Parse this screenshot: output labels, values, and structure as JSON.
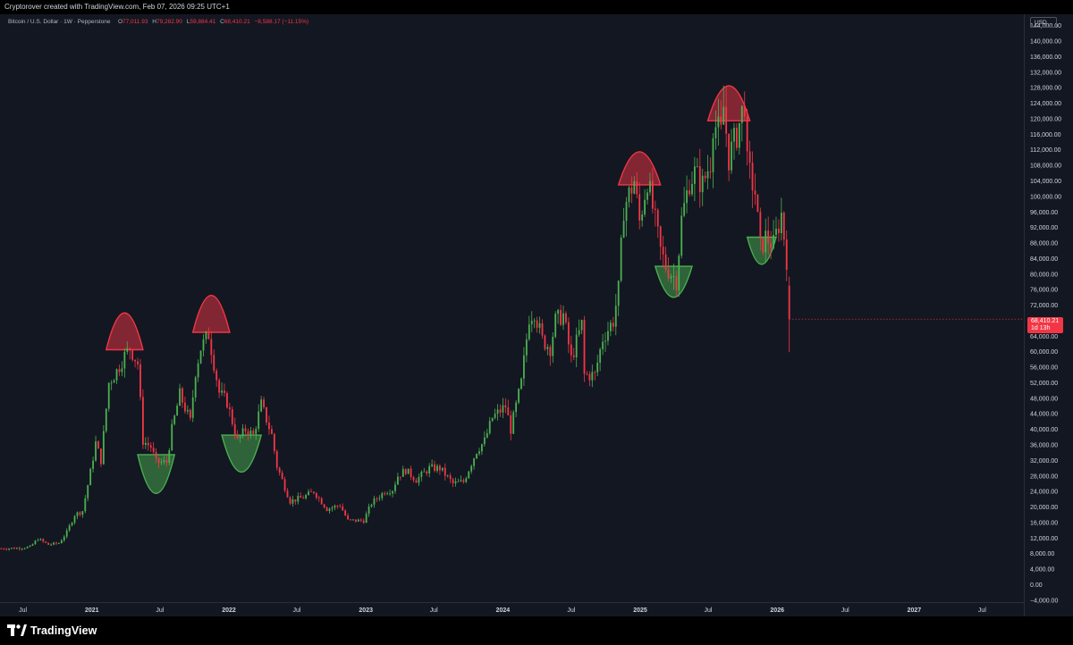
{
  "header": {
    "attribution": "Cryptorover created with TradingView.com, Feb 07, 2026 09:25 UTC+1"
  },
  "legend": {
    "symbol": "Bitcoin / U.S. Dollar · 1W · Pepperstone",
    "open_label": "O",
    "open": "77,011.93",
    "high_label": "H",
    "high": "79,282.90",
    "low_label": "L",
    "low": "59,884.41",
    "close_label": "C",
    "close": "68,410.21",
    "change": "−8,588.17 (−11.15%)"
  },
  "price_scale": {
    "currency": "USD",
    "last_price": "68,410.21",
    "countdown": "1d 13h"
  },
  "footer": {
    "brand": "TradingView"
  },
  "colors": {
    "background": "#131722",
    "up": "#4caf50",
    "down": "#f23645",
    "text": "#d1d4dc",
    "bar": "#000000"
  },
  "chart_data": {
    "type": "candlestick",
    "interval": "1W",
    "price_axis": {
      "ticks": [
        -4000,
        0,
        4000,
        8000,
        12000,
        16000,
        20000,
        24000,
        28000,
        32000,
        36000,
        40000,
        44000,
        48000,
        52000,
        56000,
        60000,
        64000,
        68000,
        72000,
        76000,
        80000,
        84000,
        88000,
        92000,
        96000,
        100000,
        104000,
        108000,
        112000,
        116000,
        120000,
        124000,
        128000,
        132000,
        136000,
        140000,
        144000
      ],
      "tick_labels": [
        "−4,000.00",
        "0.00",
        "4,000.00",
        "8,000.00",
        "12,000.00",
        "16,000.00",
        "20,000.00",
        "24,000.00",
        "28,000.00",
        "32,000.00",
        "36,000.00",
        "40,000.00",
        "44,000.00",
        "48,000.00",
        "52,000.00",
        "56,000.00",
        "60,000.00",
        "64,000.00",
        "68,000.00",
        "72,000.00",
        "76,000.00",
        "80,000.00",
        "84,000.00",
        "88,000.00",
        "92,000.00",
        "96,000.00",
        "100,000.00",
        "104,000.00",
        "108,000.00",
        "112,000.00",
        "116,000.00",
        "120,000.00",
        "124,000.00",
        "128,000.00",
        "132,000.00",
        "136,000.00",
        "140,000.00",
        "144,000.00"
      ],
      "range": [
        -4500,
        146000
      ]
    },
    "time_axis": {
      "range": [
        "2020-05-01",
        "2027-10-20"
      ],
      "ticks": [
        {
          "date": "2020-07-01",
          "label": "Jul",
          "major": false
        },
        {
          "date": "2021-01-01",
          "label": "2021",
          "major": true
        },
        {
          "date": "2021-07-01",
          "label": "Jul",
          "major": false
        },
        {
          "date": "2022-01-01",
          "label": "2022",
          "major": true
        },
        {
          "date": "2022-07-01",
          "label": "Jul",
          "major": false
        },
        {
          "date": "2023-01-01",
          "label": "2023",
          "major": true
        },
        {
          "date": "2023-07-01",
          "label": "Jul",
          "major": false
        },
        {
          "date": "2024-01-01",
          "label": "2024",
          "major": true
        },
        {
          "date": "2024-07-01",
          "label": "Jul",
          "major": false
        },
        {
          "date": "2025-01-01",
          "label": "2025",
          "major": true
        },
        {
          "date": "2025-07-01",
          "label": "Jul",
          "major": false
        },
        {
          "date": "2026-01-01",
          "label": "2026",
          "major": true
        },
        {
          "date": "2026-07-01",
          "label": "Jul",
          "major": false
        },
        {
          "date": "2027-01-01",
          "label": "2027",
          "major": true
        },
        {
          "date": "2027-07-01",
          "label": "Jul",
          "major": false
        }
      ]
    },
    "close_path": [
      [
        "2020-05-04",
        9300
      ],
      [
        "2020-06-15",
        9400
      ],
      [
        "2020-07-20",
        9700
      ],
      [
        "2020-08-10",
        11800
      ],
      [
        "2020-09-07",
        10300
      ],
      [
        "2020-10-05",
        10700
      ],
      [
        "2020-10-26",
        13500
      ],
      [
        "2020-11-16",
        18000
      ],
      [
        "2020-12-07",
        19000
      ],
      [
        "2020-12-28",
        29000
      ],
      [
        "2021-01-11",
        36500
      ],
      [
        "2021-01-25",
        32000
      ],
      [
        "2021-02-15",
        52000
      ],
      [
        "2021-03-08",
        55000
      ],
      [
        "2021-03-29",
        59000
      ],
      [
        "2021-04-12",
        61000
      ],
      [
        "2021-05-03",
        57000
      ],
      [
        "2021-05-17",
        37000
      ],
      [
        "2021-06-07",
        35500
      ],
      [
        "2021-06-21",
        31500
      ],
      [
        "2021-07-19",
        31500
      ],
      [
        "2021-08-02",
        40000
      ],
      [
        "2021-08-23",
        49000
      ],
      [
        "2021-09-20",
        42000
      ],
      [
        "2021-10-04",
        55000
      ],
      [
        "2021-10-18",
        61000
      ],
      [
        "2021-11-08",
        64500
      ],
      [
        "2021-11-22",
        57000
      ],
      [
        "2021-12-06",
        49500
      ],
      [
        "2021-12-27",
        47000
      ],
      [
        "2022-01-10",
        42000
      ],
      [
        "2022-01-24",
        37000
      ],
      [
        "2022-02-14",
        40000
      ],
      [
        "2022-03-07",
        38500
      ],
      [
        "2022-03-28",
        46500
      ],
      [
        "2022-04-25",
        38500
      ],
      [
        "2022-05-09",
        30500
      ],
      [
        "2022-06-13",
        21500
      ],
      [
        "2022-07-18",
        22500
      ],
      [
        "2022-08-15",
        24000
      ],
      [
        "2022-09-19",
        19500
      ],
      [
        "2022-10-24",
        20500
      ],
      [
        "2022-11-14",
        16500
      ],
      [
        "2022-12-26",
        16500
      ],
      [
        "2023-01-16",
        21000
      ],
      [
        "2023-02-20",
        24000
      ],
      [
        "2023-03-13",
        24500
      ],
      [
        "2023-03-27",
        28000
      ],
      [
        "2023-04-17",
        29500
      ],
      [
        "2023-05-15",
        27000
      ],
      [
        "2023-06-19",
        30000
      ],
      [
        "2023-07-17",
        30000
      ],
      [
        "2023-08-21",
        26000
      ],
      [
        "2023-09-18",
        26500
      ],
      [
        "2023-10-23",
        34500
      ],
      [
        "2023-11-13",
        37000
      ],
      [
        "2023-12-04",
        43000
      ],
      [
        "2024-01-08",
        46000
      ],
      [
        "2024-01-22",
        40000
      ],
      [
        "2024-02-19",
        52000
      ],
      [
        "2024-03-11",
        69000
      ],
      [
        "2024-03-25",
        70500
      ],
      [
        "2024-04-15",
        63000
      ],
      [
        "2024-05-06",
        61000
      ],
      [
        "2024-05-20",
        68000
      ],
      [
        "2024-06-10",
        69500
      ],
      [
        "2024-07-01",
        58000
      ],
      [
        "2024-07-29",
        67000
      ],
      [
        "2024-08-05",
        54000
      ],
      [
        "2024-09-02",
        54000
      ],
      [
        "2024-09-23",
        63500
      ],
      [
        "2024-10-21",
        68000
      ],
      [
        "2024-11-04",
        76000
      ],
      [
        "2024-11-18",
        97000
      ],
      [
        "2024-12-16",
        104000
      ],
      [
        "2024-12-30",
        93500
      ],
      [
        "2025-01-20",
        104500
      ],
      [
        "2025-02-03",
        97000
      ],
      [
        "2025-02-24",
        86000
      ],
      [
        "2025-03-10",
        82000
      ],
      [
        "2025-04-07",
        78500
      ],
      [
        "2025-04-21",
        94000
      ],
      [
        "2025-05-12",
        104000
      ],
      [
        "2025-05-26",
        106000
      ],
      [
        "2025-06-16",
        103000
      ],
      [
        "2025-07-07",
        109000
      ],
      [
        "2025-07-14",
        119000
      ],
      [
        "2025-08-04",
        116000
      ],
      [
        "2025-08-11",
        123000
      ],
      [
        "2025-08-25",
        110000
      ],
      [
        "2025-09-15",
        116000
      ],
      [
        "2025-10-06",
        124500
      ],
      [
        "2025-10-13",
        108000
      ],
      [
        "2025-11-03",
        101000
      ],
      [
        "2025-11-17",
        86500
      ],
      [
        "2025-12-01",
        89500
      ],
      [
        "2025-12-22",
        87500
      ],
      [
        "2026-01-12",
        95500
      ],
      [
        "2026-01-26",
        84000
      ],
      [
        "2026-02-02",
        68410
      ]
    ],
    "overlay_shapes": [
      {
        "kind": "top-dome",
        "color": "#f23645",
        "start": "2021-02-08",
        "end": "2021-05-17",
        "base": 60500,
        "peak": 70000
      },
      {
        "kind": "bottom-bowl",
        "color": "#4caf50",
        "start": "2021-05-03",
        "end": "2021-08-09",
        "base": 33500,
        "trough": 23500
      },
      {
        "kind": "top-dome",
        "color": "#f23645",
        "start": "2021-09-27",
        "end": "2022-01-03",
        "base": 65000,
        "peak": 74500
      },
      {
        "kind": "bottom-bowl",
        "color": "#4caf50",
        "start": "2021-12-13",
        "end": "2022-03-28",
        "base": 38500,
        "trough": 29000
      },
      {
        "kind": "top-dome",
        "color": "#f23645",
        "start": "2024-11-04",
        "end": "2025-02-24",
        "base": 103000,
        "peak": 111500
      },
      {
        "kind": "bottom-bowl",
        "color": "#4caf50",
        "start": "2025-02-10",
        "end": "2025-05-19",
        "base": 82000,
        "trough": 74000
      },
      {
        "kind": "top-dome",
        "color": "#f23645",
        "start": "2025-06-30",
        "end": "2025-10-20",
        "base": 119500,
        "peak": 128500
      },
      {
        "kind": "bottom-bowl",
        "color": "#4caf50",
        "start": "2025-10-13",
        "end": "2025-12-29",
        "base": 89500,
        "trough": 82500
      }
    ],
    "last_bar": {
      "date": "2026-02-02",
      "open": 77011.93,
      "high": 79282.9,
      "low": 59884.41,
      "close": 68410.21
    }
  }
}
